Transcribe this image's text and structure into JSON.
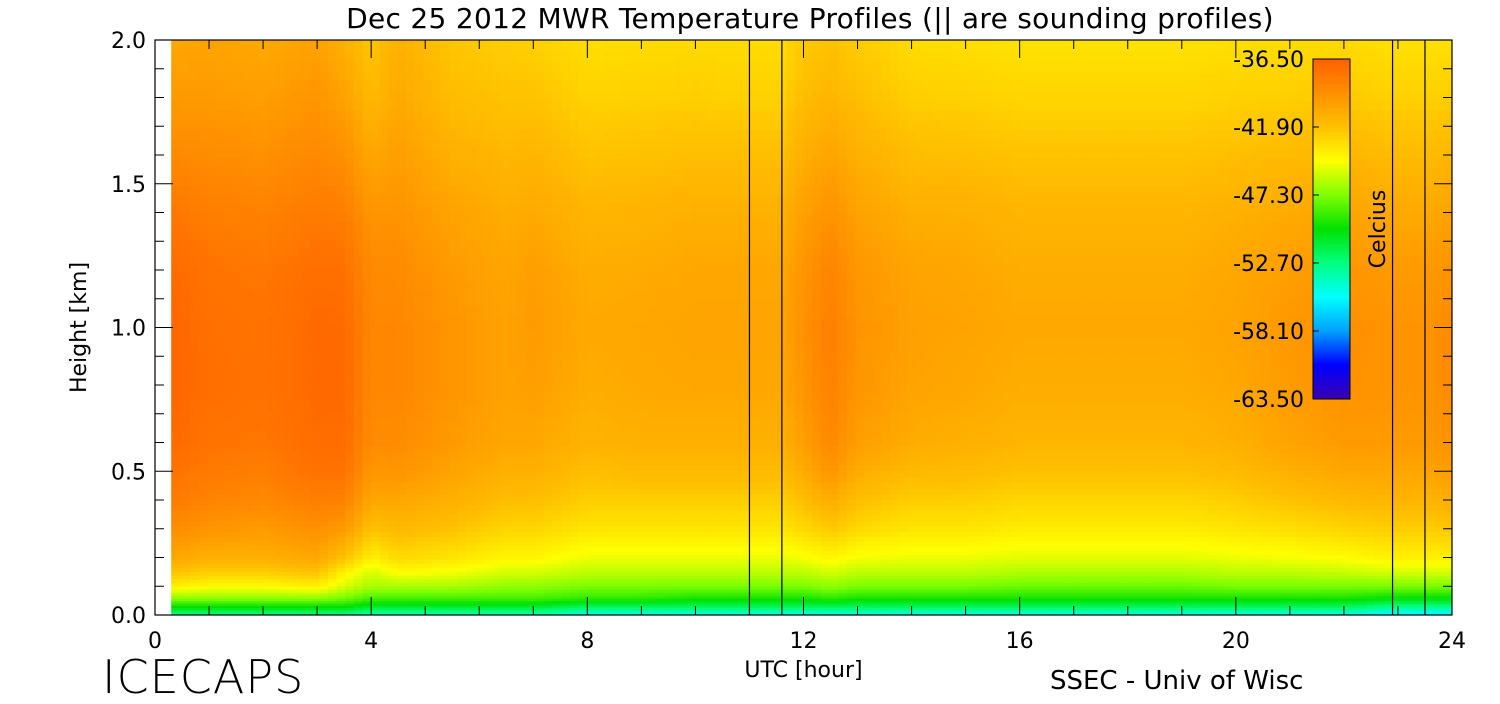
{
  "title": "Dec 25 2012 MWR Temperature Profiles (|| are sounding profiles)",
  "brand": "ICECAPS",
  "credit": "SSEC - Univ of Wisc",
  "chart_data": {
    "type": "heatmap",
    "title": "Dec 25 2012 MWR Temperature Profiles (|| are sounding profiles)",
    "xlabel": "UTC [hour]",
    "ylabel": "Height [km]",
    "xlim": [
      0,
      24
    ],
    "ylim": [
      0,
      2.0
    ],
    "xticks": [
      0,
      4,
      8,
      12,
      16,
      20,
      24
    ],
    "xtick_labels": [
      "0",
      "4",
      "8",
      "12",
      "16",
      "20",
      "24"
    ],
    "yticks": [
      0,
      0.5,
      1.0,
      1.5,
      2.0
    ],
    "ytick_labels": [
      "0.0",
      "0.5",
      "1.0",
      "1.5",
      "2.0"
    ],
    "colorbar": {
      "label": "Celcius",
      "placement": "top-right",
      "range": [
        -63.5,
        -36.5
      ],
      "tick_values": [
        -36.5,
        -41.9,
        -47.3,
        -52.7,
        -58.1,
        -63.5
      ],
      "tick_labels": [
        "-36.50",
        "-41.90",
        "-47.30",
        "-52.70",
        "-58.10",
        "-63.50"
      ],
      "colors": [
        "#3a00b0",
        "#0000ff",
        "#00a0ff",
        "#00ffff",
        "#00ff80",
        "#00e000",
        "#80ff00",
        "#ffff00",
        "#ffc000",
        "#ff9000",
        "#ff6000"
      ]
    },
    "sounding_profiles": [
      {
        "start": 11.0,
        "end": 11.6
      },
      {
        "start": 22.9,
        "end": 23.5
      }
    ],
    "hours": [
      0.3,
      1.0,
      2.0,
      3.0,
      3.5,
      4.0,
      4.5,
      5.5,
      6.5,
      7.0,
      8.0,
      9.0,
      10.0,
      11.0,
      11.6,
      12.0,
      12.5,
      13.0,
      14.0,
      15.0,
      16.0,
      17.0,
      18.0,
      19.0,
      20.0,
      21.0,
      22.0,
      22.9,
      23.5,
      23.9
    ],
    "heights_km": [
      0.0,
      0.03,
      0.06,
      0.1,
      0.15,
      0.2,
      0.3,
      0.4,
      0.5,
      0.6,
      0.8,
      1.0,
      1.2,
      1.4,
      1.6,
      1.8,
      2.0
    ],
    "temperature_profiles_c": [
      [
        -53,
        -50,
        -47,
        -44,
        -42,
        -40.5,
        -39,
        -38,
        -37.5,
        -37.0,
        -36.8,
        -36.8,
        -37.0,
        -37.8,
        -38.8,
        -39.8,
        -40.5
      ],
      [
        -53,
        -50,
        -47,
        -44.5,
        -42.5,
        -41,
        -39.5,
        -38.5,
        -38.0,
        -37.6,
        -37.3,
        -37.4,
        -37.6,
        -38.2,
        -39.0,
        -39.8,
        -40.3
      ],
      [
        -53,
        -50,
        -47,
        -44.5,
        -42.5,
        -41,
        -39.8,
        -38.8,
        -38.2,
        -37.8,
        -37.5,
        -37.6,
        -37.8,
        -38.4,
        -39.2,
        -40.0,
        -40.6
      ],
      [
        -53,
        -50,
        -47,
        -44,
        -42,
        -40.5,
        -39.2,
        -38.2,
        -37.5,
        -37.2,
        -37.0,
        -37.0,
        -37.3,
        -38.0,
        -38.8,
        -39.5,
        -40.2
      ],
      [
        -53,
        -50,
        -47.5,
        -45.5,
        -44,
        -42,
        -39.8,
        -38.4,
        -37.6,
        -37.2,
        -37.0,
        -37.1,
        -37.4,
        -38.2,
        -39.2,
        -40.2,
        -41.0
      ],
      [
        -54,
        -51,
        -48.5,
        -46.5,
        -45.5,
        -44,
        -42,
        -40.5,
        -39.6,
        -39.0,
        -38.7,
        -38.7,
        -38.9,
        -39.5,
        -40.5,
        -41.5,
        -42.2
      ],
      [
        -54,
        -51,
        -48.5,
        -46.5,
        -44.5,
        -43,
        -41.5,
        -40.5,
        -39.5,
        -39.0,
        -38.7,
        -38.7,
        -38.9,
        -39.4,
        -40.0,
        -40.6,
        -41.0
      ],
      [
        -54,
        -51,
        -48.5,
        -46.5,
        -44.8,
        -43.5,
        -42,
        -41,
        -40.3,
        -39.8,
        -39.5,
        -39.5,
        -39.8,
        -40.3,
        -41.0,
        -41.7,
        -42.2
      ],
      [
        -54,
        -51,
        -48.5,
        -47,
        -45.5,
        -44.2,
        -42.8,
        -41.8,
        -41.0,
        -40.5,
        -40.2,
        -40.2,
        -40.4,
        -40.8,
        -41.4,
        -42.0,
        -42.5
      ],
      [
        -54,
        -51,
        -48.5,
        -47,
        -45.5,
        -44.2,
        -42.8,
        -41.8,
        -41.0,
        -40.5,
        -40.0,
        -39.8,
        -40.0,
        -40.6,
        -41.3,
        -42.0,
        -42.6
      ],
      [
        -55,
        -52,
        -49,
        -47.5,
        -46,
        -45,
        -43.5,
        -42.5,
        -41.8,
        -41.2,
        -40.8,
        -40.6,
        -40.8,
        -41.3,
        -42.0,
        -42.7,
        -43.2
      ],
      [
        -55,
        -52,
        -49,
        -47.5,
        -46,
        -45,
        -43.5,
        -42.5,
        -41.6,
        -41.0,
        -40.6,
        -40.5,
        -40.7,
        -41.2,
        -41.9,
        -42.6,
        -43.1
      ],
      [
        -55,
        -52,
        -49.5,
        -47.5,
        -46,
        -45,
        -43.5,
        -42.5,
        -41.6,
        -41.0,
        -40.5,
        -40.3,
        -40.5,
        -41.0,
        -41.8,
        -42.5,
        -43.0
      ],
      [
        -55,
        -52,
        -49.5,
        -47.5,
        -46,
        -45,
        -43.5,
        -42.5,
        -41.6,
        -41.0,
        -40.5,
        -40.3,
        -40.5,
        -41.0,
        -41.8,
        -42.6,
        -43.1
      ],
      [
        -55,
        -52,
        -49.5,
        -47.5,
        -46,
        -45,
        -43.5,
        -42.5,
        -41.6,
        -41.0,
        -40.5,
        -40.3,
        -40.5,
        -41.0,
        -41.8,
        -42.6,
        -43.1
      ],
      [
        -55,
        -52,
        -49.5,
        -47.5,
        -46,
        -44.8,
        -43,
        -41.8,
        -40.8,
        -40.0,
        -39.5,
        -39.3,
        -39.5,
        -40.1,
        -40.9,
        -41.7,
        -42.3
      ],
      [
        -55,
        -52,
        -49,
        -47,
        -45.5,
        -44.2,
        -42.3,
        -40.8,
        -39.5,
        -38.8,
        -38.3,
        -38.2,
        -38.5,
        -39.3,
        -40.3,
        -41.3,
        -42.0
      ],
      [
        -55,
        -52,
        -49.5,
        -47.5,
        -46,
        -44.8,
        -43,
        -41.8,
        -40.8,
        -40.0,
        -39.5,
        -39.4,
        -39.6,
        -40.2,
        -41.0,
        -41.8,
        -42.4
      ],
      [
        -55,
        -52,
        -49.5,
        -47.5,
        -46,
        -45,
        -43.5,
        -42.5,
        -41.5,
        -40.8,
        -40.3,
        -40.1,
        -40.3,
        -40.9,
        -41.7,
        -42.5,
        -43.1
      ],
      [
        -55,
        -52,
        -49.5,
        -47.5,
        -46,
        -45,
        -43.5,
        -42.5,
        -41.6,
        -41.0,
        -40.5,
        -40.3,
        -40.5,
        -41.0,
        -41.8,
        -42.6,
        -43.2
      ],
      [
        -55,
        -52,
        -49.5,
        -47.8,
        -46.3,
        -45.2,
        -43.8,
        -42.8,
        -41.9,
        -41.3,
        -40.8,
        -40.6,
        -40.8,
        -41.3,
        -42.0,
        -42.8,
        -43.4
      ],
      [
        -55,
        -52,
        -49.5,
        -47.8,
        -46.3,
        -45.2,
        -43.8,
        -42.8,
        -41.9,
        -41.3,
        -40.8,
        -40.6,
        -40.8,
        -41.3,
        -42.0,
        -42.8,
        -43.4
      ],
      [
        -55,
        -52,
        -49.5,
        -47.8,
        -46.3,
        -45.2,
        -43.8,
        -42.8,
        -41.9,
        -41.3,
        -40.8,
        -40.6,
        -40.8,
        -41.3,
        -42.0,
        -42.8,
        -43.4
      ],
      [
        -55,
        -52,
        -49.5,
        -47.8,
        -46.3,
        -45.2,
        -43.8,
        -42.8,
        -41.9,
        -41.3,
        -40.8,
        -40.6,
        -40.8,
        -41.3,
        -42.0,
        -42.8,
        -43.4
      ],
      [
        -55,
        -52,
        -49.5,
        -47.5,
        -46,
        -45,
        -43.5,
        -42.5,
        -41.6,
        -41.0,
        -40.5,
        -40.3,
        -40.5,
        -41.0,
        -41.8,
        -42.6,
        -43.2
      ],
      [
        -55,
        -52,
        -49.5,
        -47.5,
        -46,
        -44.8,
        -43.2,
        -42,
        -41.0,
        -40.3,
        -39.8,
        -39.7,
        -40.0,
        -40.7,
        -41.6,
        -42.5,
        -43.1
      ],
      [
        -55,
        -52,
        -49.5,
        -47.5,
        -45.8,
        -44.5,
        -42.8,
        -41.5,
        -40.5,
        -39.8,
        -39.3,
        -39.2,
        -39.5,
        -40.3,
        -41.3,
        -42.3,
        -43.0
      ],
      [
        -56,
        -53,
        -50,
        -47.5,
        -45.5,
        -44,
        -42.5,
        -41.3,
        -40.4,
        -39.8,
        -39.4,
        -39.4,
        -39.8,
        -40.6,
        -41.6,
        -42.6,
        -43.3
      ],
      [
        -56,
        -53,
        -50,
        -47.5,
        -45.5,
        -44,
        -42.5,
        -41.3,
        -40.4,
        -39.8,
        -39.4,
        -39.4,
        -39.8,
        -40.6,
        -41.6,
        -42.6,
        -43.3
      ],
      [
        -56,
        -53,
        -50,
        -47.5,
        -45.5,
        -44,
        -42.3,
        -41.0,
        -40.0,
        -39.4,
        -39.0,
        -39.0,
        -39.4,
        -40.3,
        -41.4,
        -42.5,
        -43.3
      ]
    ]
  }
}
